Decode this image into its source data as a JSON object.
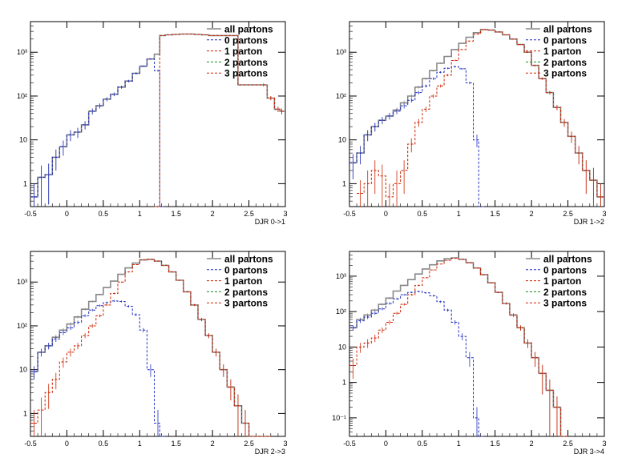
{
  "legend_entries": [
    {
      "label": "all partons",
      "color": "#888888",
      "dash": "solid"
    },
    {
      "label": "0 partons",
      "color": "#1f2fbf",
      "dash": "dash"
    },
    {
      "label": "1 parton",
      "color": "#cc2200",
      "dash": "dash"
    },
    {
      "label": "2 partons",
      "color": "#1a8a1a",
      "dash": "dash"
    },
    {
      "label": "3 partons",
      "color": "#cc2200",
      "dash": "dash"
    }
  ],
  "chart_data": [
    {
      "type": "line",
      "xlabel": "DJR 0->1",
      "xlim": [
        -0.5,
        3
      ],
      "ylim": [
        0.3,
        5000
      ],
      "yscale": "log",
      "x_ticks": [
        "-0.5",
        "0",
        "0.5",
        "1",
        "1.5",
        "2",
        "2.5",
        "3"
      ],
      "y_ticks": [
        {
          "v": 1,
          "label": "1"
        },
        {
          "v": 10,
          "label": "10"
        },
        {
          "v": 100,
          "label": "10²"
        },
        {
          "v": 1000,
          "label": "10³"
        }
      ],
      "legend": "top-right",
      "series": [
        {
          "name": "all partons",
          "x": [
            -0.45,
            -0.35,
            -0.25,
            -0.15,
            -0.05,
            0.05,
            0.15,
            0.25,
            0.35,
            0.45,
            0.55,
            0.65,
            0.75,
            0.85,
            0.95,
            1.05,
            1.15,
            1.25,
            1.3,
            1.4,
            1.5,
            1.6,
            1.7,
            1.8,
            1.9,
            2.0,
            2.7,
            2.8,
            2.9,
            2.95
          ],
          "y": [
            0.5,
            1.4,
            1.6,
            4,
            7,
            13,
            15,
            22,
            45,
            60,
            85,
            110,
            160,
            220,
            330,
            480,
            700,
            900,
            2400,
            2500,
            2550,
            2600,
            2600,
            2550,
            2500,
            2400,
            180,
            90,
            50,
            45
          ]
        },
        {
          "name": "0 partons",
          "x": [
            -0.45,
            -0.35,
            -0.25,
            -0.15,
            -0.05,
            0.05,
            0.15,
            0.25,
            0.35,
            0.45,
            0.55,
            0.65,
            0.75,
            0.85,
            0.95,
            1.05,
            1.15,
            1.25,
            1.3
          ],
          "y": [
            0.5,
            1.4,
            1.6,
            4,
            7,
            13,
            15,
            22,
            45,
            60,
            85,
            110,
            160,
            220,
            330,
            480,
            700,
            380,
            0.3
          ]
        },
        {
          "name": "1 parton",
          "x": [
            1.25,
            1.3,
            1.4,
            1.5,
            1.6,
            1.7,
            1.8,
            1.9,
            2.0,
            2.7,
            2.8,
            2.9,
            2.95
          ],
          "y": [
            0.3,
            2400,
            2500,
            2550,
            2600,
            2600,
            2550,
            2500,
            2400,
            180,
            90,
            50,
            45
          ]
        }
      ]
    },
    {
      "type": "line",
      "xlabel": "DJR 1->2",
      "xlim": [
        -0.5,
        3
      ],
      "ylim": [
        0.3,
        5000
      ],
      "yscale": "log",
      "x_ticks": [
        "-0.5",
        "0",
        "0.5",
        "1",
        "1.5",
        "2",
        "2.5",
        "3"
      ],
      "y_ticks": [
        {
          "v": 1,
          "label": "1"
        },
        {
          "v": 10,
          "label": "10"
        },
        {
          "v": 100,
          "label": "10²"
        },
        {
          "v": 1000,
          "label": "10³"
        }
      ],
      "legend": "top-right",
      "series": [
        {
          "name": "all partons",
          "x": [
            -0.45,
            -0.35,
            -0.25,
            -0.15,
            -0.05,
            0.05,
            0.15,
            0.25,
            0.35,
            0.45,
            0.55,
            0.65,
            0.75,
            0.85,
            0.95,
            1.05,
            1.15,
            1.25,
            1.35,
            1.45,
            1.55,
            1.65,
            1.75,
            1.85,
            1.95,
            2.05,
            2.15,
            2.25,
            2.35,
            2.45,
            2.55,
            2.65,
            2.75,
            2.85,
            2.95
          ],
          "y": [
            3,
            5,
            13,
            20,
            28,
            35,
            48,
            70,
            100,
            160,
            250,
            380,
            560,
            800,
            1150,
            1600,
            2200,
            2800,
            3300,
            3200,
            2900,
            2500,
            2000,
            1500,
            1000,
            500,
            250,
            120,
            55,
            25,
            12,
            5,
            2,
            1.2,
            0.5
          ]
        },
        {
          "name": "0 partons",
          "x": [
            -0.45,
            -0.35,
            -0.25,
            -0.15,
            -0.05,
            0.05,
            0.15,
            0.25,
            0.35,
            0.45,
            0.55,
            0.65,
            0.75,
            0.85,
            0.95,
            1.05,
            1.15,
            1.25,
            1.3
          ],
          "y": [
            3,
            5,
            13,
            20,
            28,
            35,
            45,
            60,
            80,
            120,
            170,
            250,
            350,
            430,
            470,
            420,
            200,
            10,
            0.3
          ]
        },
        {
          "name": "1 parton",
          "x": [
            -0.35,
            -0.25,
            -0.15,
            -0.05,
            0.05,
            0.15,
            0.25,
            0.35,
            0.45,
            0.55,
            0.65,
            0.75,
            0.85,
            0.95,
            1.05,
            1.15,
            1.25,
            1.35,
            1.45,
            1.55,
            1.65,
            1.75,
            1.85,
            1.95,
            2.05,
            2.15,
            2.25,
            2.35,
            2.45,
            2.55,
            2.65,
            2.75,
            2.85,
            2.95
          ],
          "y": [
            0.6,
            1,
            2,
            1.5,
            0.5,
            1,
            2,
            8,
            25,
            50,
            100,
            170,
            300,
            650,
            1150,
            1800,
            2600,
            3300,
            3200,
            2900,
            2500,
            2000,
            1500,
            1000,
            500,
            250,
            120,
            55,
            25,
            12,
            5,
            2,
            1.2,
            0.5
          ]
        }
      ]
    },
    {
      "type": "line",
      "xlabel": "DJR 2->3",
      "xlim": [
        -0.5,
        3
      ],
      "ylim": [
        0.3,
        5000
      ],
      "yscale": "log",
      "x_ticks": [
        "-0.5",
        "0",
        "0.5",
        "1",
        "1.5",
        "2",
        "2.5",
        "3"
      ],
      "y_ticks": [
        {
          "v": 1,
          "label": "1"
        },
        {
          "v": 10,
          "label": "10"
        },
        {
          "v": 100,
          "label": "10²"
        },
        {
          "v": 1000,
          "label": "10³"
        }
      ],
      "legend": "top-right",
      "series": [
        {
          "name": "all partons",
          "x": [
            -0.45,
            -0.35,
            -0.25,
            -0.15,
            -0.05,
            0.05,
            0.15,
            0.25,
            0.35,
            0.45,
            0.55,
            0.65,
            0.75,
            0.85,
            0.95,
            1.05,
            1.15,
            1.25,
            1.35,
            1.45,
            1.55,
            1.65,
            1.75,
            1.85,
            1.95,
            2.05,
            2.15,
            2.25,
            2.35,
            2.45,
            2.55,
            2.65,
            2.75
          ],
          "y": [
            9,
            25,
            35,
            55,
            80,
            110,
            160,
            240,
            360,
            520,
            750,
            1050,
            1500,
            2100,
            2700,
            3200,
            3300,
            3000,
            2400,
            1700,
            1100,
            600,
            300,
            140,
            60,
            25,
            10,
            4,
            1.5,
            0.6,
            0.3,
            0.3,
            0.3
          ]
        },
        {
          "name": "0 partons",
          "x": [
            -0.45,
            -0.35,
            -0.25,
            -0.15,
            -0.05,
            0.05,
            0.15,
            0.25,
            0.35,
            0.45,
            0.55,
            0.65,
            0.75,
            0.85,
            0.95,
            1.05,
            1.15,
            1.25,
            1.3
          ],
          "y": [
            9,
            25,
            35,
            50,
            70,
            90,
            120,
            170,
            230,
            290,
            340,
            370,
            360,
            280,
            180,
            80,
            10,
            0.6,
            0.3
          ]
        },
        {
          "name": "1 parton",
          "x": [
            -0.45,
            -0.35,
            -0.25,
            -0.15,
            -0.05,
            0.05,
            0.15,
            0.25,
            0.35,
            0.45,
            0.55,
            0.65,
            0.75,
            0.85,
            0.95,
            1.05,
            1.15,
            1.25,
            1.35,
            1.45,
            1.55,
            1.65,
            1.75,
            1.85,
            1.95,
            2.05,
            2.15,
            2.25,
            2.35,
            2.45,
            2.55,
            2.65,
            2.75
          ],
          "y": [
            0.6,
            1.2,
            3,
            6,
            15,
            25,
            35,
            60,
            100,
            170,
            300,
            550,
            1000,
            1700,
            2500,
            3200,
            3300,
            3000,
            2400,
            1700,
            1100,
            600,
            300,
            140,
            60,
            25,
            10,
            4,
            1.5,
            0.6,
            0.3,
            0.3,
            0.3
          ]
        }
      ]
    },
    {
      "type": "line",
      "xlabel": "DJR 3->4",
      "xlim": [
        -0.5,
        3
      ],
      "ylim": [
        0.03,
        5000
      ],
      "yscale": "log",
      "x_ticks": [
        "-0.5",
        "0",
        "0.5",
        "1",
        "1.5",
        "2",
        "2.5",
        "3"
      ],
      "y_ticks": [
        {
          "v": 0.1,
          "label": "10⁻¹"
        },
        {
          "v": 1,
          "label": "1"
        },
        {
          "v": 10,
          "label": "10"
        },
        {
          "v": 100,
          "label": "10²"
        },
        {
          "v": 1000,
          "label": "10³"
        }
      ],
      "legend": "top-right",
      "series": [
        {
          "name": "all partons",
          "x": [
            -0.45,
            -0.35,
            -0.25,
            -0.15,
            -0.05,
            0.05,
            0.15,
            0.25,
            0.35,
            0.45,
            0.55,
            0.65,
            0.75,
            0.85,
            0.95,
            1.05,
            1.15,
            1.25,
            1.35,
            1.45,
            1.55,
            1.65,
            1.75,
            1.85,
            1.95,
            2.05,
            2.15,
            2.25,
            2.35,
            2.45
          ],
          "y": [
            35,
            60,
            80,
            110,
            160,
            240,
            380,
            550,
            800,
            1150,
            1600,
            2100,
            2700,
            3100,
            3300,
            3000,
            2400,
            1700,
            1100,
            650,
            350,
            170,
            80,
            35,
            13,
            5,
            1.8,
            0.6,
            0.2,
            0.03
          ]
        },
        {
          "name": "0 partons",
          "x": [
            -0.45,
            -0.35,
            -0.25,
            -0.15,
            -0.05,
            0.05,
            0.15,
            0.25,
            0.35,
            0.45,
            0.55,
            0.65,
            0.75,
            0.85,
            0.95,
            1.05,
            1.15,
            1.25,
            1.3
          ],
          "y": [
            35,
            55,
            70,
            90,
            120,
            170,
            230,
            300,
            350,
            370,
            340,
            280,
            190,
            110,
            50,
            20,
            5,
            0.1,
            0.03
          ]
        },
        {
          "name": "1 parton",
          "x": [
            -0.45,
            -0.35,
            -0.25,
            -0.15,
            -0.05,
            0.05,
            0.15,
            0.25,
            0.35,
            0.45,
            0.55,
            0.65,
            0.75,
            0.85,
            0.95,
            1.05,
            1.15,
            1.25,
            1.35,
            1.45,
            1.55,
            1.65,
            1.75,
            1.85,
            1.95,
            2.05,
            2.15,
            2.25,
            2.35,
            2.45
          ],
          "y": [
            3,
            10,
            13,
            18,
            30,
            50,
            90,
            160,
            300,
            550,
            900,
            1500,
            2200,
            2800,
            3200,
            3000,
            2400,
            1700,
            1100,
            650,
            350,
            170,
            80,
            35,
            13,
            5,
            1.8,
            0.6,
            0.2,
            0.03
          ]
        }
      ]
    }
  ]
}
